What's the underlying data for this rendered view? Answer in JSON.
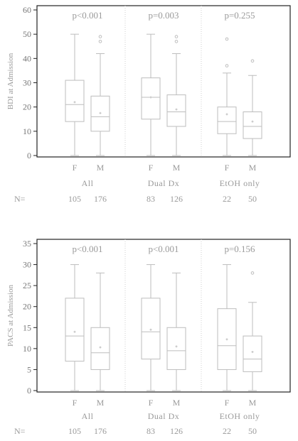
{
  "chart_data": [
    {
      "type": "box",
      "ylabel": "BDI at Admission",
      "ylim": [
        0,
        60
      ],
      "yticks": [
        0,
        10,
        20,
        30,
        40,
        50,
        60
      ],
      "grid": false,
      "group_labels": [
        "All",
        "Dual Dx",
        "EtOH only"
      ],
      "group_pvalues": [
        "p<0.001",
        "p=0.003",
        "p=0.255"
      ],
      "categories": [
        "F",
        "M",
        "F",
        "M",
        "F",
        "M"
      ],
      "n_label": "N=",
      "n_values": [
        "105",
        "176",
        "83",
        "126",
        "22",
        "50"
      ],
      "boxes": [
        {
          "group": "All",
          "sex": "F",
          "min": 0,
          "q1": 14,
          "median": 21,
          "q3": 31,
          "max": 50,
          "mean": 22,
          "outliers": []
        },
        {
          "group": "All",
          "sex": "M",
          "min": 0,
          "q1": 10,
          "median": 16,
          "q3": 24.5,
          "max": 42,
          "mean": 17.5,
          "outliers": [
            47,
            49
          ]
        },
        {
          "group": "Dual Dx",
          "sex": "F",
          "min": 0,
          "q1": 15,
          "median": 24,
          "q3": 32,
          "max": 50,
          "mean": 24,
          "outliers": []
        },
        {
          "group": "Dual Dx",
          "sex": "M",
          "min": 0,
          "q1": 12,
          "median": 18,
          "q3": 25,
          "max": 42,
          "mean": 19,
          "outliers": [
            47,
            49
          ]
        },
        {
          "group": "EtOH only",
          "sex": "F",
          "min": 0,
          "q1": 9,
          "median": 14,
          "q3": 20,
          "max": 34,
          "mean": 17,
          "outliers": [
            37,
            48
          ]
        },
        {
          "group": "EtOH only",
          "sex": "M",
          "min": 0,
          "q1": 7,
          "median": 12,
          "q3": 18,
          "max": 33,
          "mean": 14,
          "outliers": [
            39
          ]
        }
      ]
    },
    {
      "type": "box",
      "ylabel": "PACS at Admission",
      "ylim": [
        0,
        35
      ],
      "yticks": [
        0,
        5,
        10,
        15,
        20,
        25,
        30,
        35
      ],
      "grid": false,
      "group_labels": [
        "All",
        "Dual Dx",
        "EtOH only"
      ],
      "group_pvalues": [
        "p<0.001",
        "p<0.001",
        "p=0.156"
      ],
      "categories": [
        "F",
        "M",
        "F",
        "M",
        "F",
        "M"
      ],
      "n_label": "N=",
      "n_values": [
        "105",
        "176",
        "83",
        "126",
        "22",
        "50"
      ],
      "boxes": [
        {
          "group": "All",
          "sex": "F",
          "min": 0,
          "q1": 7,
          "median": 13,
          "q3": 22,
          "max": 30,
          "mean": 14,
          "outliers": []
        },
        {
          "group": "All",
          "sex": "M",
          "min": 0,
          "q1": 5,
          "median": 9,
          "q3": 15,
          "max": 28,
          "mean": 10.3,
          "outliers": []
        },
        {
          "group": "Dual Dx",
          "sex": "F",
          "min": 0,
          "q1": 7.5,
          "median": 14,
          "q3": 22,
          "max": 30,
          "mean": 14.5,
          "outliers": []
        },
        {
          "group": "Dual Dx",
          "sex": "M",
          "min": 0,
          "q1": 5,
          "median": 9.5,
          "q3": 15,
          "max": 28,
          "mean": 10.5,
          "outliers": []
        },
        {
          "group": "EtOH only",
          "sex": "F",
          "min": 0,
          "q1": 5,
          "median": 10.7,
          "q3": 19.5,
          "max": 30,
          "mean": 12.2,
          "outliers": []
        },
        {
          "group": "EtOH only",
          "sex": "M",
          "min": 0,
          "q1": 4.5,
          "median": 7.5,
          "q3": 13,
          "max": 21,
          "mean": 9.2,
          "outliers": [
            28
          ]
        }
      ]
    }
  ],
  "colors": {
    "frame": "#222222",
    "box": "#bdbdbd",
    "tick_text": "#777777",
    "label_text": "#9a9a9a",
    "divider": "#cfcfcf"
  }
}
